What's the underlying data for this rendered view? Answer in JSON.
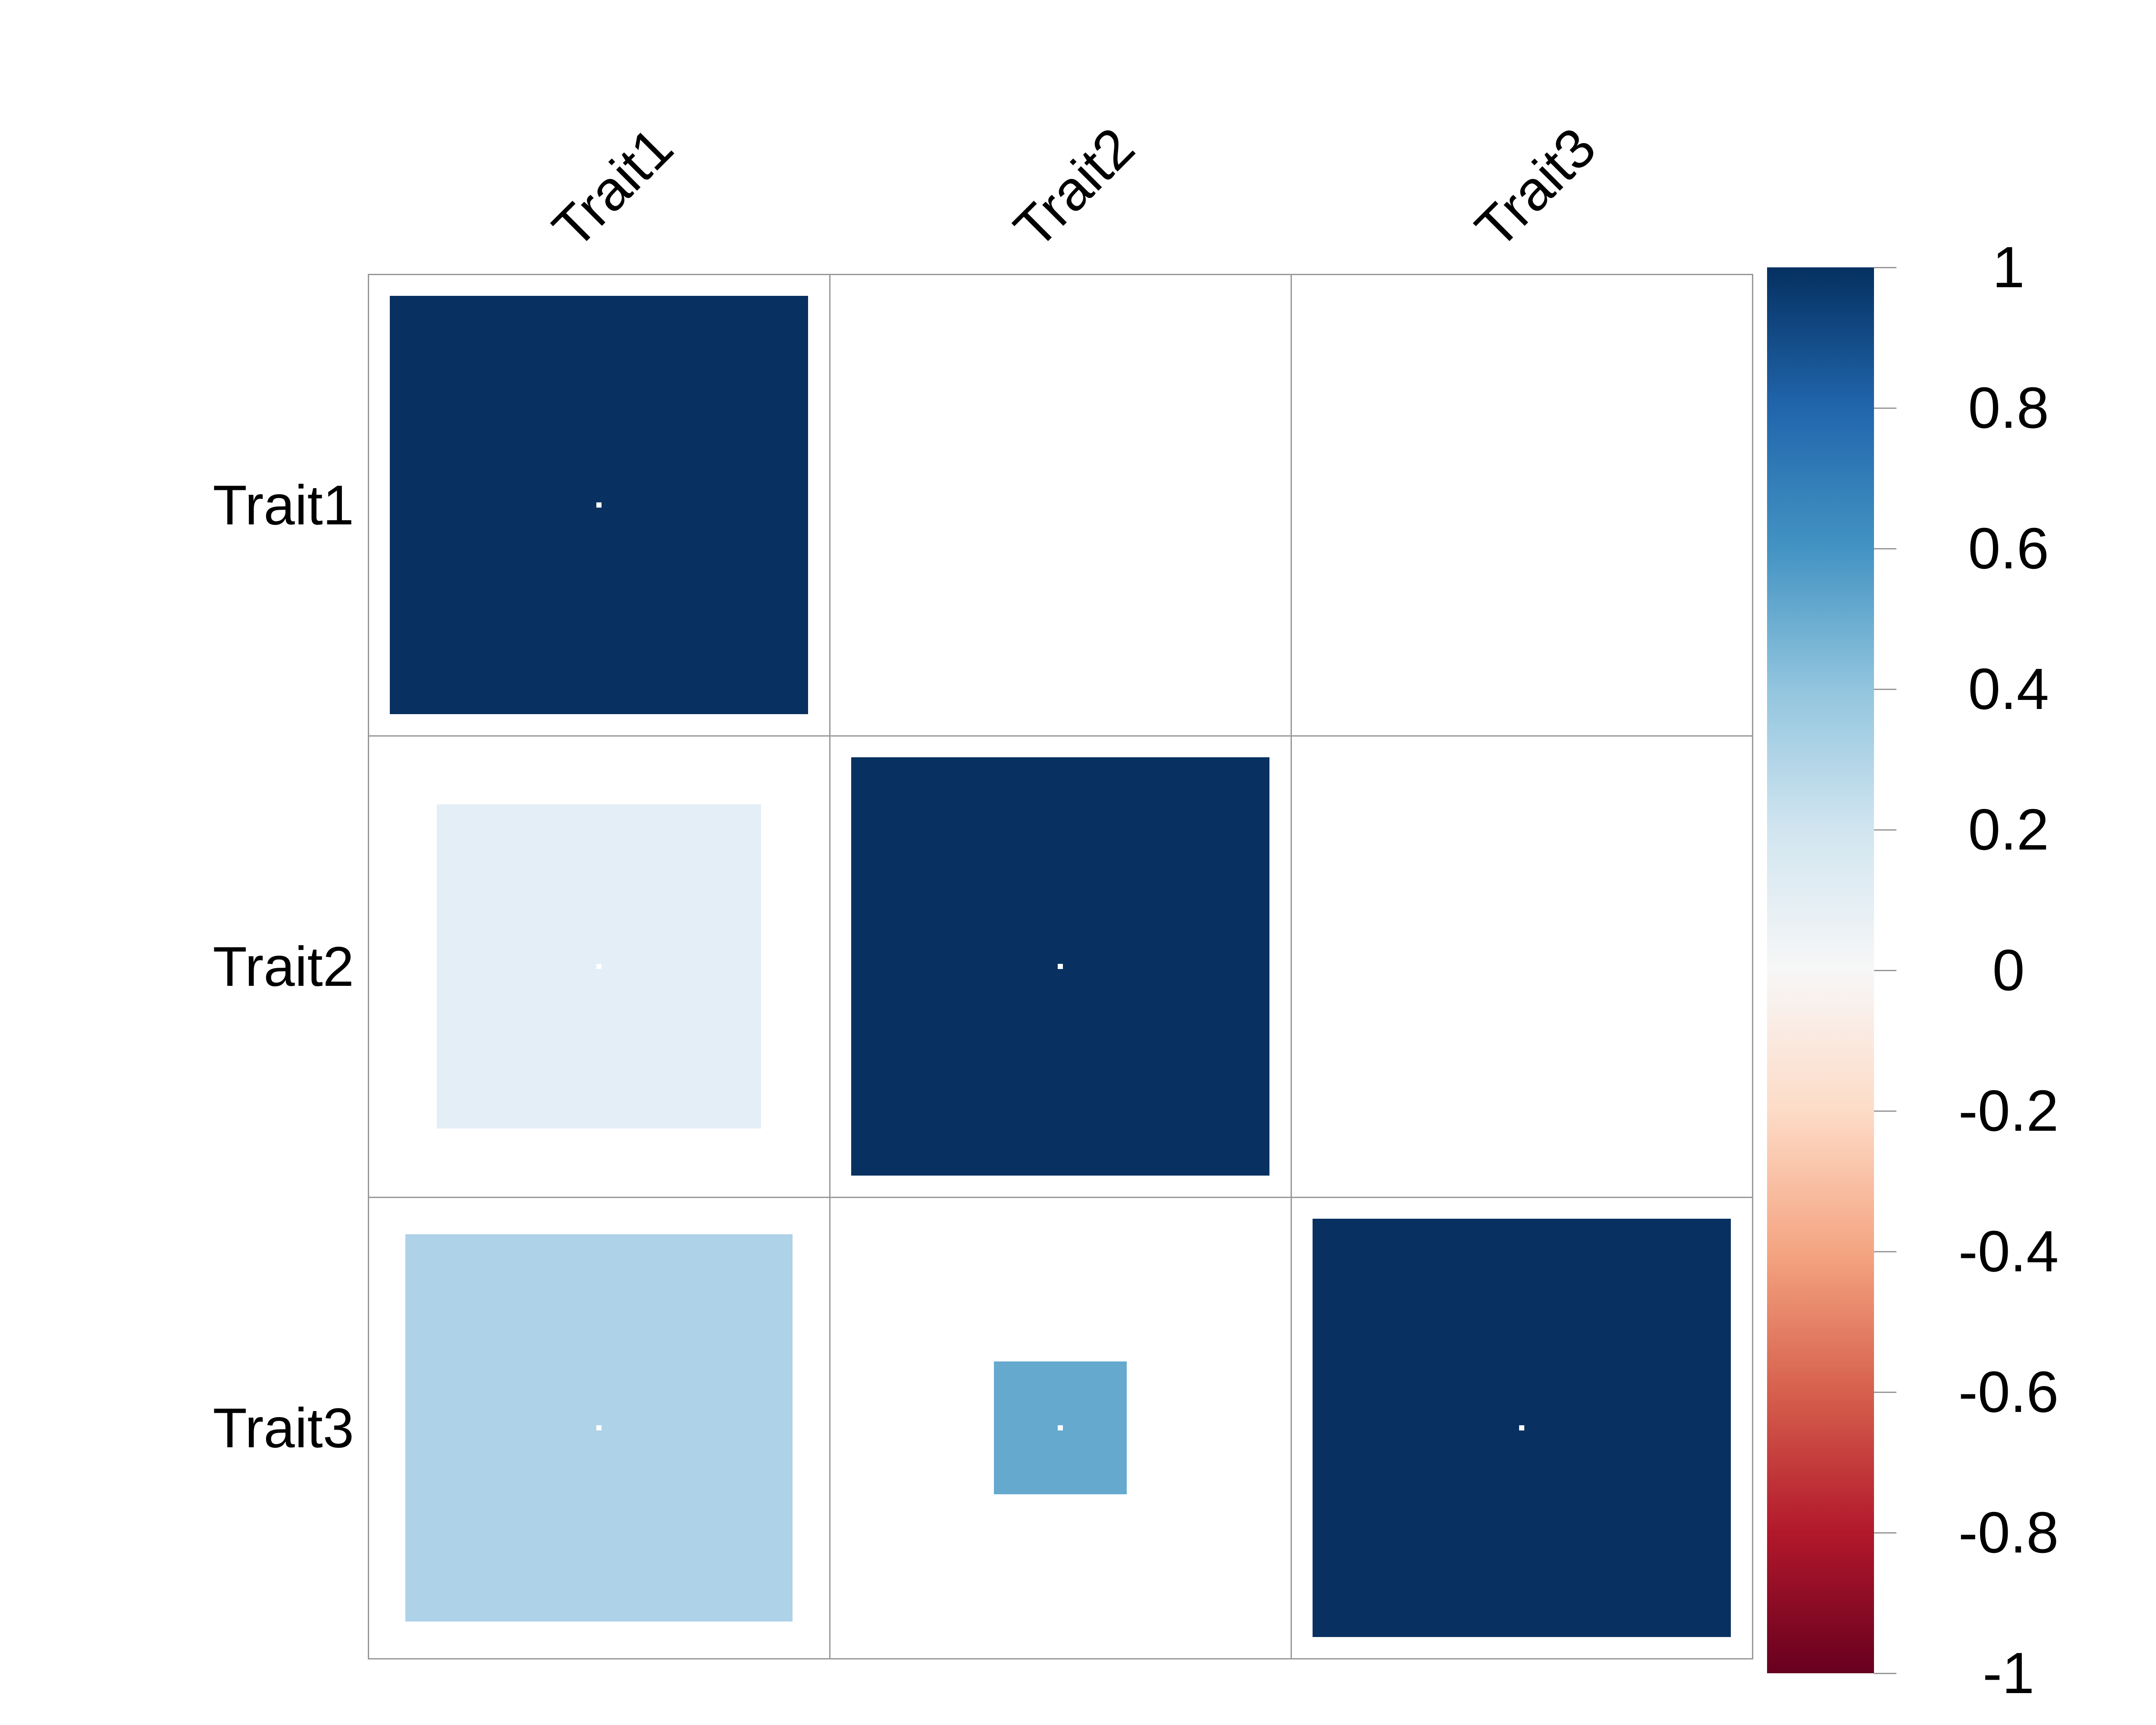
{
  "figure": {
    "background": "#FFFFFF",
    "text_color": "#000000"
  },
  "chart_data": {
    "type": "heatmap",
    "subtype": "correlation-matrix-lower-triangle-sized-squares",
    "title": "",
    "variables": [
      "Trait1",
      "Trait2",
      "Trait3"
    ],
    "row_labels": [
      "Trait1",
      "Trait2",
      "Trait3"
    ],
    "col_labels": [
      "Trait1",
      "Trait2",
      "Trait3"
    ],
    "grid": {
      "rows": 3,
      "cols": 3,
      "line_color": "#979797",
      "shown_triangle": "lower"
    },
    "cells": [
      {
        "row": "Trait1",
        "col": "Trait1",
        "row_index": 0,
        "col_index": 0,
        "value": 1.0,
        "fill": "#083161",
        "size_frac": 0.907
      },
      {
        "row": "Trait2",
        "col": "Trait1",
        "row_index": 1,
        "col_index": 0,
        "value": 0.1,
        "fill": "#E4EEF6",
        "size_frac": 0.702
      },
      {
        "row": "Trait2",
        "col": "Trait2",
        "row_index": 1,
        "col_index": 1,
        "value": 1.0,
        "fill": "#083161",
        "size_frac": 0.907
      },
      {
        "row": "Trait3",
        "col": "Trait1",
        "row_index": 2,
        "col_index": 0,
        "value": 0.3,
        "fill": "#AED2E8",
        "size_frac": 0.839
      },
      {
        "row": "Trait3",
        "col": "Trait2",
        "row_index": 2,
        "col_index": 1,
        "value": 0.5,
        "fill": "#65A9CF",
        "size_frac": 0.287
      },
      {
        "row": "Trait3",
        "col": "Trait3",
        "row_index": 2,
        "col_index": 2,
        "value": 1.0,
        "fill": "#083161",
        "size_frac": 0.907
      }
    ],
    "center_dot_color": "#FFFFFF",
    "colorbar": {
      "orientation": "vertical",
      "range": [
        -1,
        1
      ],
      "tick_labels": [
        "1",
        "0.8",
        "0.6",
        "0.4",
        "0.2",
        "0",
        "-0.2",
        "-0.4",
        "-0.6",
        "-0.8",
        "-1"
      ],
      "tick_color": "#979797",
      "gradient_stops": [
        {
          "value": 1.0,
          "color": "#053061"
        },
        {
          "value": 0.8,
          "color": "#2166AC"
        },
        {
          "value": 0.6,
          "color": "#4393C3"
        },
        {
          "value": 0.4,
          "color": "#92C5DE"
        },
        {
          "value": 0.2,
          "color": "#D1E5F0"
        },
        {
          "value": 0.0,
          "color": "#F7F7F7"
        },
        {
          "value": -0.2,
          "color": "#FDDBC7"
        },
        {
          "value": -0.4,
          "color": "#F4A582"
        },
        {
          "value": -0.6,
          "color": "#D6604D"
        },
        {
          "value": -0.8,
          "color": "#B2182B"
        },
        {
          "value": -1.0,
          "color": "#67001F"
        }
      ]
    }
  }
}
